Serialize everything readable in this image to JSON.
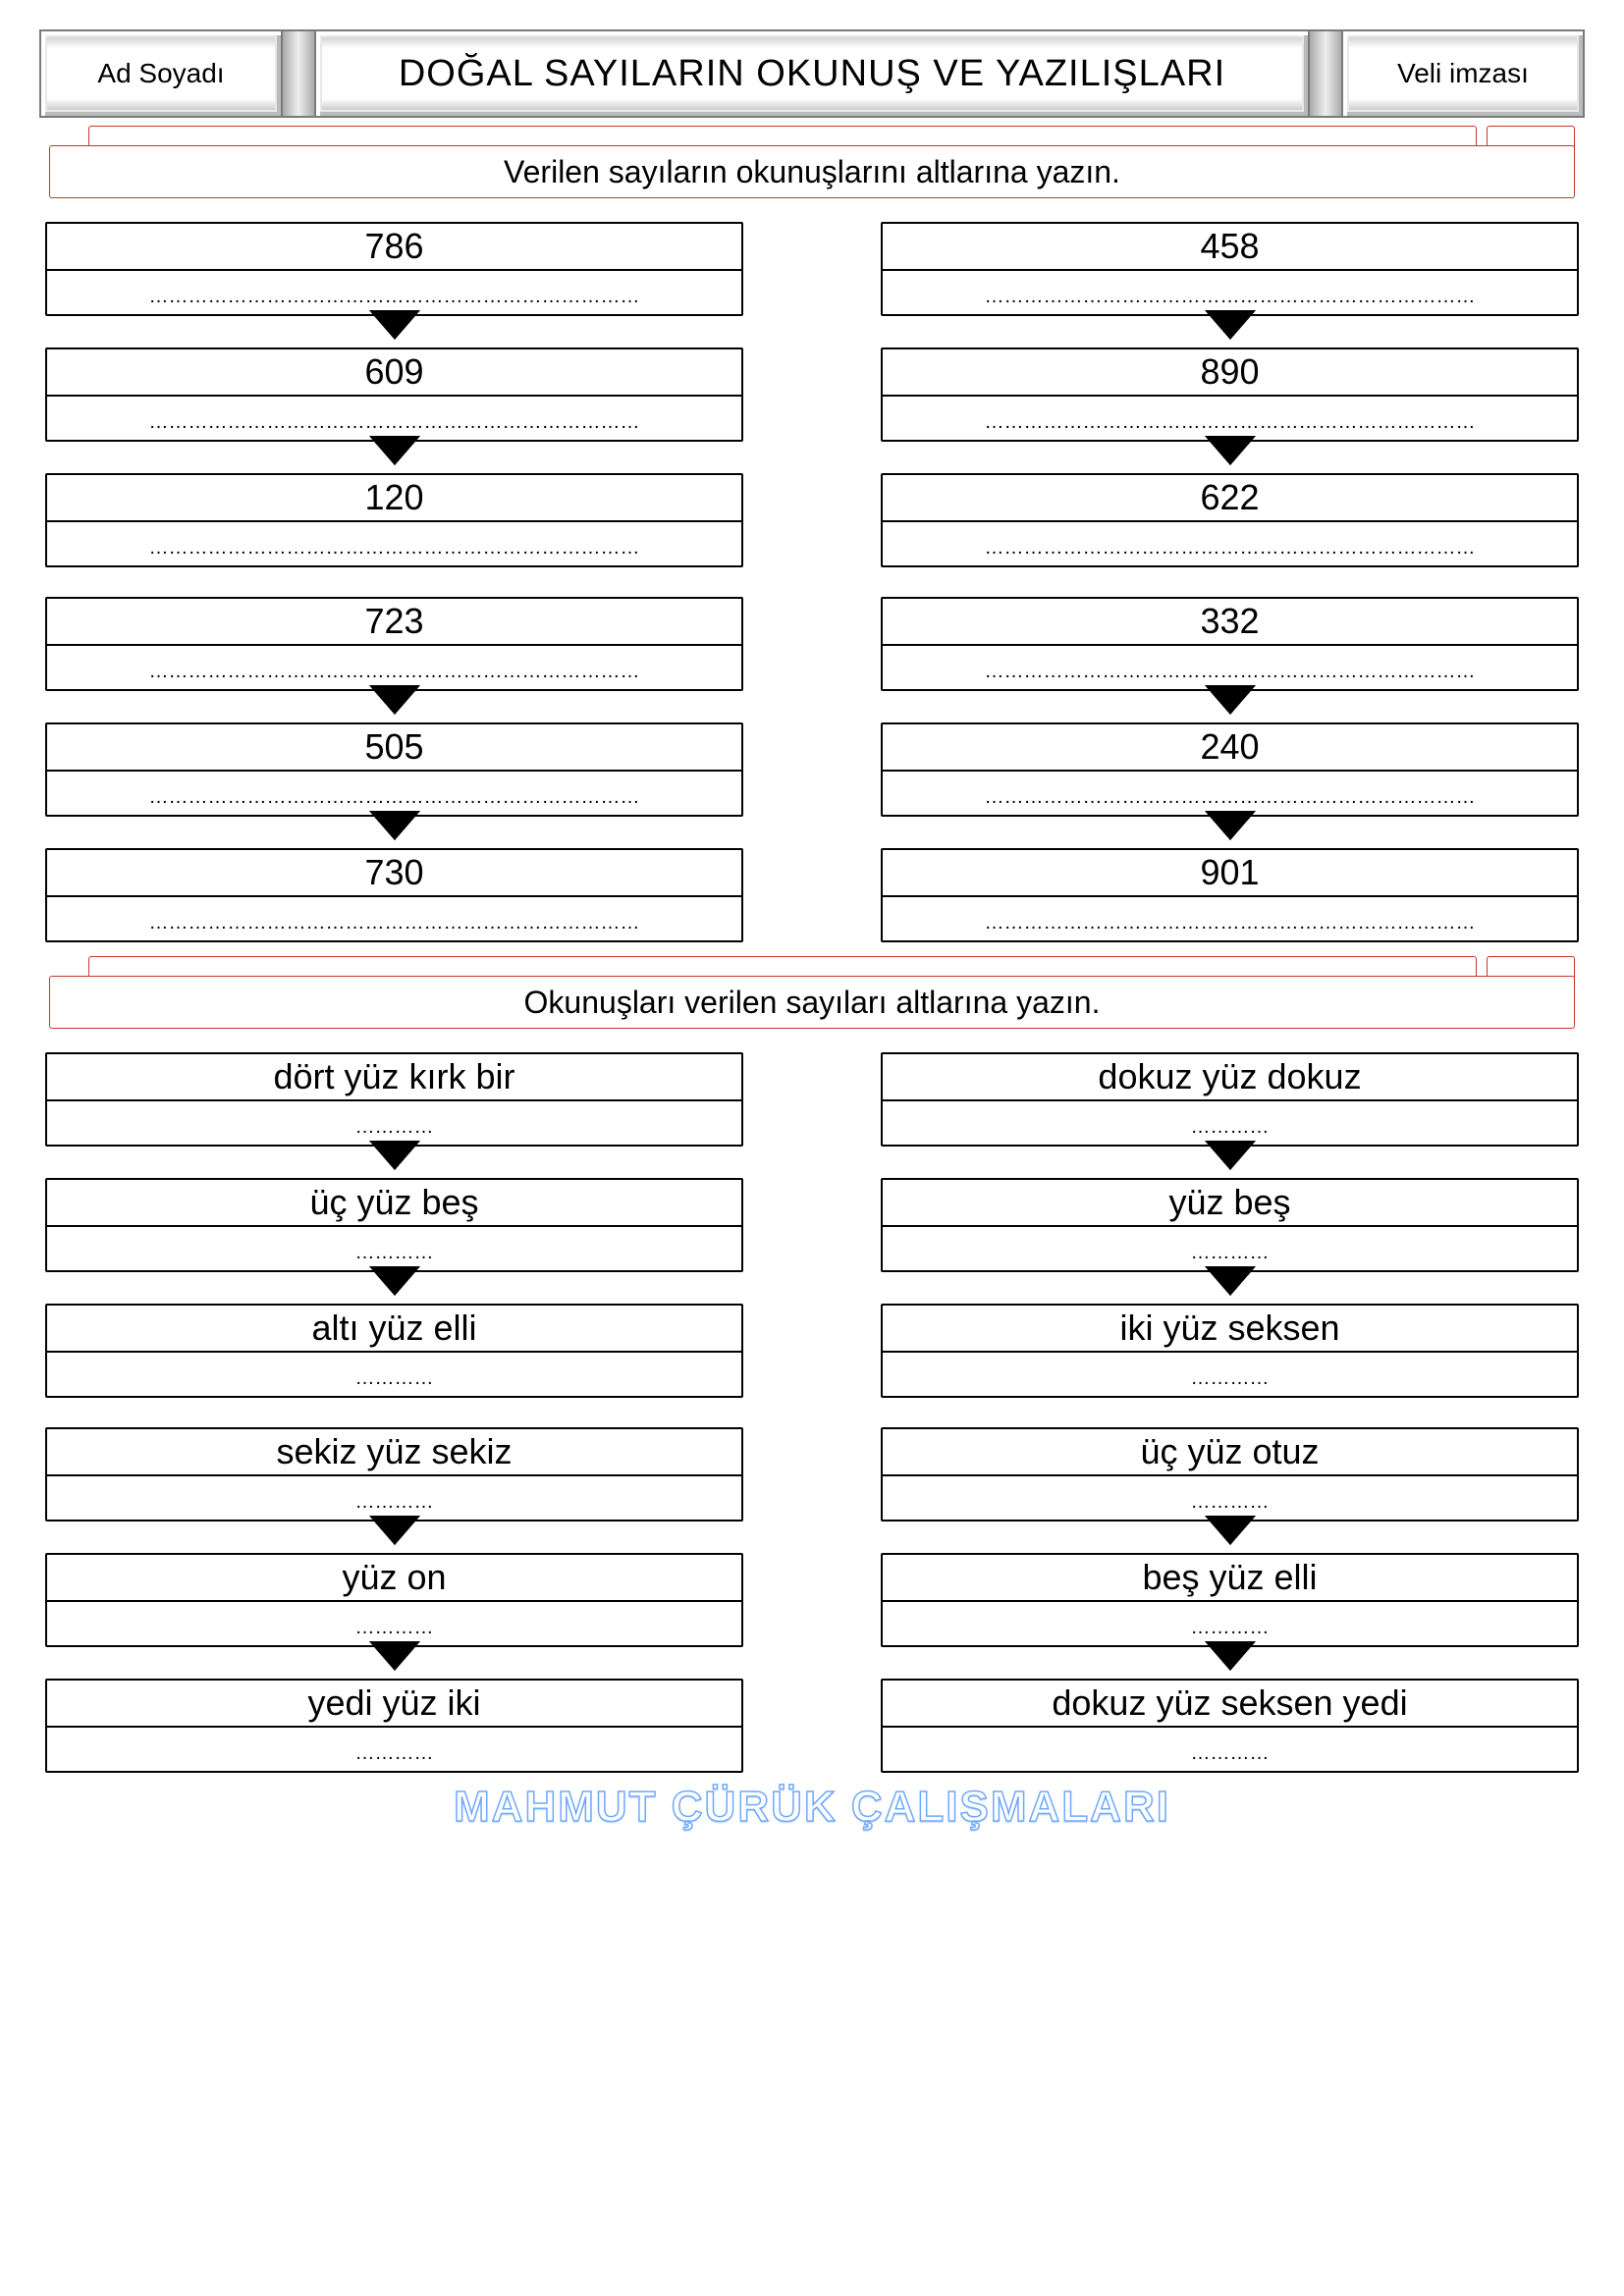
{
  "header": {
    "left_label": "Ad Soyadı",
    "title": "DOĞAL SAYILARIN OKUNUŞ VE YAZILIŞLARI",
    "right_label": "Veli imzası"
  },
  "section1": {
    "instruction": "Verilen sayıların okunuşlarını altlarına yazın.",
    "left": [
      "786",
      "609",
      "120",
      "723",
      "505",
      "730"
    ],
    "right": [
      "458",
      "890",
      "622",
      "332",
      "240",
      "901"
    ],
    "group_break_after_index": 2,
    "answer_placeholder_style": "dots-long"
  },
  "section2": {
    "instruction": "Okunuşları verilen sayıları altlarına yazın.",
    "left": [
      "dört yüz kırk bir",
      "üç yüz beş",
      "altı yüz elli",
      "sekiz yüz sekiz",
      "yüz on",
      "yedi yüz iki"
    ],
    "right": [
      "dokuz yüz dokuz",
      "yüz beş",
      "iki yüz seksen",
      "üç yüz otuz",
      "beş yüz elli",
      "dokuz yüz seksen yedi"
    ],
    "group_break_after_index": 2,
    "answer_placeholder_style": "dots-short"
  },
  "footer": {
    "watermark": "MAHMUT ÇÜRÜK ÇALIŞMALARI"
  },
  "style": {
    "page_bg": "#ffffff",
    "border_color": "#000000",
    "instruction_border": "#c23a2a",
    "bevel_gray": "#d8d8d8",
    "watermark_stroke": "#6fa8ff",
    "number_fontsize_pt": 36,
    "word_fontsize_pt": 34
  }
}
